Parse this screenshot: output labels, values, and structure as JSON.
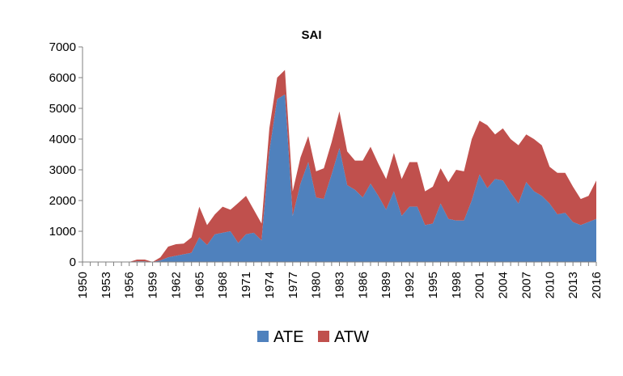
{
  "chart_data": {
    "type": "area",
    "stacked": true,
    "title": "SAI",
    "xlabel": "",
    "ylabel": "",
    "x": [
      1950,
      1951,
      1952,
      1953,
      1954,
      1955,
      1956,
      1957,
      1958,
      1959,
      1960,
      1961,
      1962,
      1963,
      1964,
      1965,
      1966,
      1967,
      1968,
      1969,
      1970,
      1971,
      1972,
      1973,
      1974,
      1975,
      1976,
      1977,
      1978,
      1979,
      1980,
      1981,
      1982,
      1983,
      1984,
      1985,
      1986,
      1987,
      1988,
      1989,
      1990,
      1991,
      1992,
      1993,
      1994,
      1995,
      1996,
      1997,
      1998,
      1999,
      2000,
      2001,
      2002,
      2003,
      2004,
      2005,
      2006,
      2007,
      2008,
      2009,
      2010,
      2011,
      2012,
      2013,
      2014,
      2015,
      2016
    ],
    "xtick_labels": [
      "1950",
      "1953",
      "1956",
      "1959",
      "1962",
      "1965",
      "1968",
      "1971",
      "1974",
      "1977",
      "1980",
      "1983",
      "1986",
      "1989",
      "1992",
      "1995",
      "1998",
      "2001",
      "2004",
      "2007",
      "2010",
      "2013",
      "2016"
    ],
    "ylim": [
      0,
      7000
    ],
    "ytick_labels": [
      "0",
      "1000",
      "2000",
      "3000",
      "4000",
      "5000",
      "6000",
      "7000"
    ],
    "grid": false,
    "legend": "bottom-center",
    "series": [
      {
        "name": "ATE",
        "color": "#4F81BD",
        "values": [
          0,
          0,
          0,
          0,
          0,
          0,
          0,
          20,
          20,
          0,
          50,
          150,
          200,
          250,
          300,
          800,
          550,
          900,
          950,
          1000,
          620,
          900,
          950,
          700,
          3600,
          5300,
          5450,
          1500,
          2550,
          3250,
          2100,
          2050,
          2850,
          3700,
          2500,
          2350,
          2100,
          2550,
          2150,
          1700,
          2300,
          1500,
          1800,
          1800,
          1200,
          1250,
          1900,
          1400,
          1350,
          1350,
          2000,
          2850,
          2400,
          2700,
          2650,
          2250,
          1900,
          2600,
          2300,
          2150,
          1900,
          1550,
          1600,
          1300,
          1200,
          1300,
          1400
        ]
      },
      {
        "name": "ATW",
        "color": "#C0504D",
        "values": [
          0,
          0,
          0,
          0,
          0,
          0,
          0,
          60,
          60,
          0,
          100,
          350,
          380,
          350,
          500,
          1000,
          650,
          650,
          850,
          700,
          1300,
          1250,
          750,
          550,
          750,
          700,
          800,
          800,
          850,
          850,
          850,
          1000,
          1050,
          1200,
          1100,
          950,
          1200,
          1200,
          1050,
          1000,
          1250,
          1200,
          1450,
          1450,
          1100,
          1200,
          1150,
          1200,
          1650,
          1600,
          2000,
          1750,
          2050,
          1450,
          1700,
          1750,
          1900,
          1550,
          1700,
          1650,
          1200,
          1350,
          1300,
          1150,
          850,
          850,
          1250
        ]
      }
    ]
  }
}
